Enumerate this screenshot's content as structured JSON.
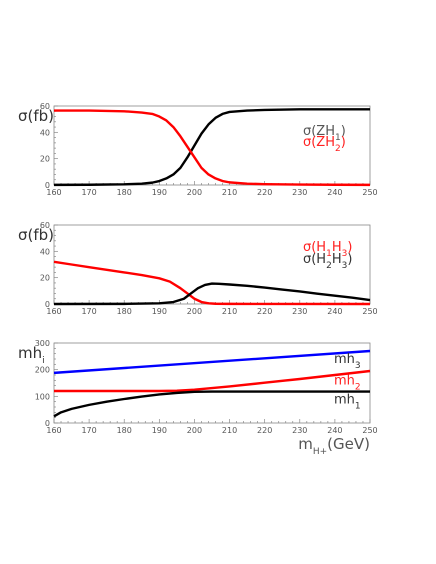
{
  "chart_data": [
    {
      "type": "line",
      "ylabel": "σ(fb)",
      "xlim": [
        160,
        250
      ],
      "ylim": [
        0,
        60
      ],
      "x_ticks": [
        160,
        170,
        180,
        190,
        200,
        210,
        220,
        230,
        240,
        250
      ],
      "y_ticks": [
        0,
        20,
        40,
        60
      ],
      "legend": {
        "placement": "right",
        "entries": [
          {
            "base": "σ(ZH",
            "sub": "1",
            "close": ")",
            "color": "#555555"
          },
          {
            "base": "σ(ZH",
            "sub": "2",
            "close": ")",
            "color": "#ff2020"
          }
        ]
      },
      "series": [
        {
          "color": "#000000",
          "x": [
            160,
            170,
            180,
            185,
            188,
            190,
            192,
            194,
            196,
            198,
            200,
            202,
            204,
            206,
            208,
            210,
            215,
            220,
            230,
            240,
            250
          ],
          "y": [
            0.1,
            0.2,
            0.5,
            1,
            1.8,
            3,
            5,
            8,
            13,
            21,
            30,
            39,
            46,
            51,
            54,
            55.5,
            56.5,
            57,
            57.5,
            57.5,
            57.5
          ]
        },
        {
          "color": "#ff0000",
          "x": [
            160,
            170,
            180,
            185,
            188,
            190,
            192,
            194,
            196,
            198,
            200,
            202,
            204,
            206,
            208,
            210,
            215,
            220,
            230,
            240,
            250
          ],
          "y": [
            56.5,
            56.5,
            56,
            55,
            54,
            52,
            49,
            44,
            37,
            29,
            21,
            13,
            8,
            5,
            3,
            2,
            1,
            0.6,
            0.3,
            0.2,
            0.1
          ]
        }
      ]
    },
    {
      "type": "line",
      "ylabel": "σ(fb)",
      "xlim": [
        160,
        250
      ],
      "ylim": [
        0,
        60
      ],
      "x_ticks": [
        160,
        170,
        180,
        190,
        200,
        210,
        220,
        230,
        240,
        250
      ],
      "y_ticks": [
        0,
        20,
        40,
        60
      ],
      "legend": {
        "placement": "right",
        "entries": [
          {
            "base": "σ(H",
            "sub": "1",
            "mid": "H",
            "sub2": "3",
            "close": ")",
            "color": "#ff2020"
          },
          {
            "base": "σ(H",
            "sub": "2",
            "mid": "H",
            "sub2": "3",
            "close": ")",
            "color": "#333333"
          }
        ]
      },
      "series": [
        {
          "color": "#ff0000",
          "x": [
            160,
            165,
            170,
            175,
            180,
            185,
            190,
            193,
            196,
            198,
            200,
            202,
            204,
            206,
            210,
            220,
            250
          ],
          "y": [
            32,
            30,
            28,
            26,
            24,
            22,
            19.5,
            17,
            12,
            8,
            4,
            1.5,
            0.5,
            0.2,
            0.1,
            0.05,
            0
          ]
        },
        {
          "color": "#000000",
          "x": [
            160,
            180,
            190,
            194,
            197,
            199,
            201,
            203,
            205,
            207,
            210,
            215,
            220,
            225,
            230,
            235,
            240,
            245,
            250
          ],
          "y": [
            0,
            0.1,
            0.5,
            1.5,
            4,
            8,
            12,
            14.5,
            15.5,
            15.3,
            14.8,
            13.8,
            12.5,
            11,
            9.5,
            7.8,
            6.3,
            4.8,
            3
          ]
        }
      ]
    },
    {
      "type": "line",
      "ylabel": "mh",
      "ylabel_sub": "i",
      "xlabel": "m",
      "xlabel_sub": "H+",
      "xlabel_rest": "(GeV)",
      "xlim": [
        160,
        250
      ],
      "ylim": [
        0,
        300
      ],
      "x_ticks": [
        160,
        170,
        180,
        190,
        200,
        210,
        220,
        230,
        240,
        250
      ],
      "y_ticks": [
        0,
        100,
        200,
        300
      ],
      "labels": [
        {
          "base": "mh",
          "sub": "3",
          "color": "#333333",
          "x": 240,
          "y": 240
        },
        {
          "base": "mh",
          "sub": "2",
          "color": "#ff2020",
          "x": 240,
          "y": 160
        },
        {
          "base": "mh",
          "sub": "1",
          "color": "#333333",
          "x": 240,
          "y": 88
        }
      ],
      "series": [
        {
          "color": "#0000ff",
          "x": [
            160,
            250
          ],
          "y": [
            188,
            270
          ]
        },
        {
          "color": "#ff0000",
          "x": [
            160,
            170,
            180,
            190,
            195,
            200,
            210,
            220,
            230,
            240,
            250
          ],
          "y": [
            120,
            120,
            120,
            120,
            121,
            125,
            137,
            151,
            165,
            180,
            195
          ]
        },
        {
          "color": "#000000",
          "x": [
            160,
            162,
            165,
            170,
            175,
            180,
            185,
            190,
            195,
            200,
            205,
            210,
            220,
            230,
            240,
            250
          ],
          "y": [
            25,
            40,
            53,
            68,
            80,
            90,
            99,
            107,
            113,
            117,
            118,
            118,
            118,
            118,
            118,
            118
          ]
        }
      ]
    }
  ]
}
